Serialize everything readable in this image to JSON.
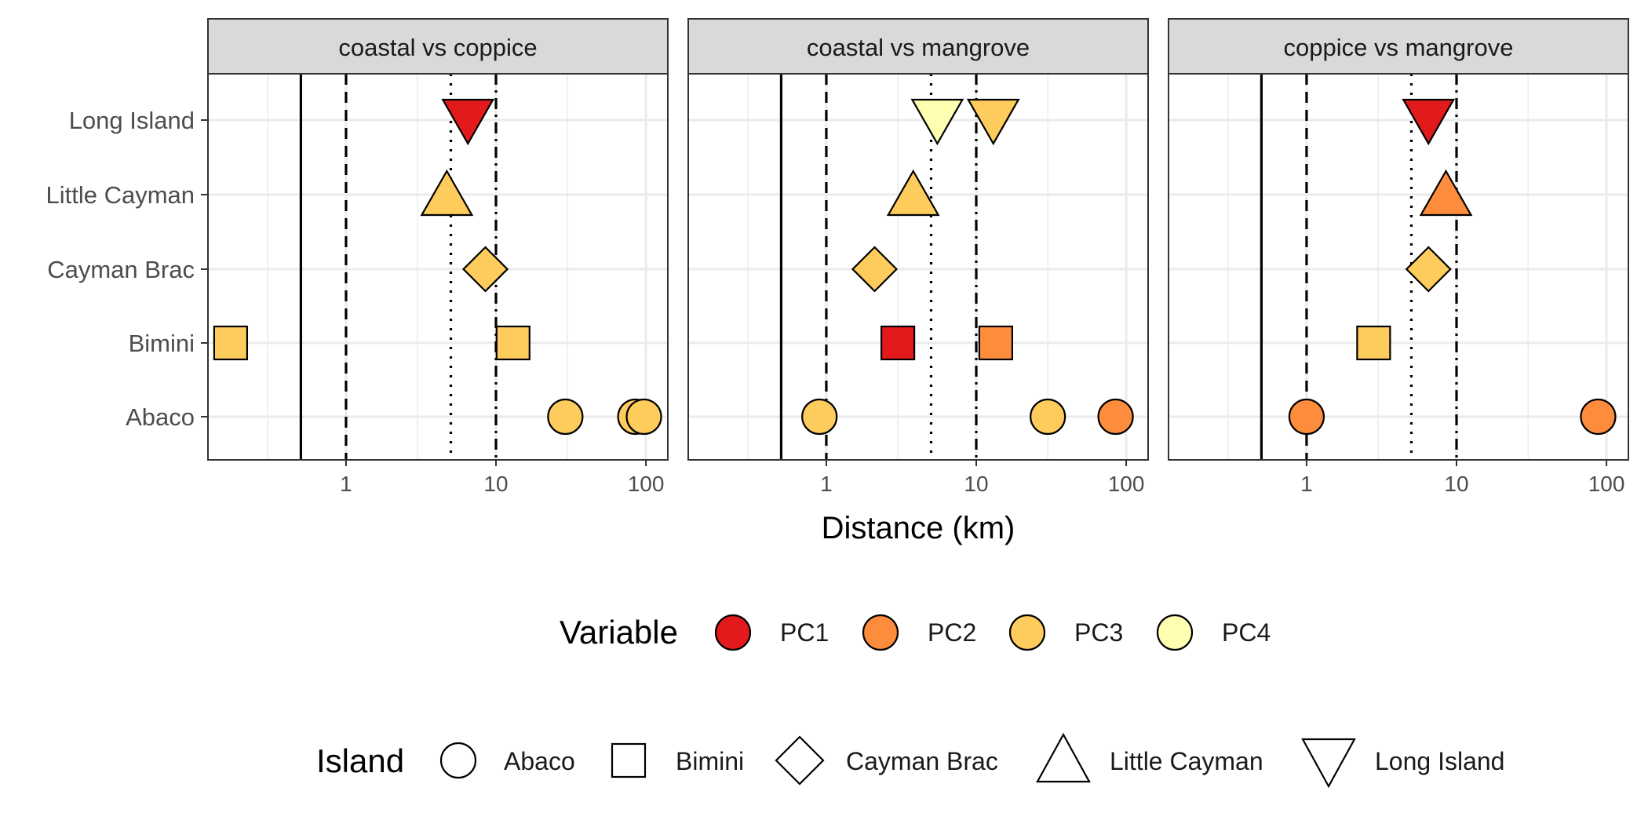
{
  "chart_data": {
    "type": "scatter",
    "xlabel": "Distance (km)",
    "x_scale": "log10",
    "xlim": [
      0.12,
      140
    ],
    "x_ticks": [
      1,
      10,
      100
    ],
    "x_tick_labels": [
      "1",
      "10",
      "100"
    ],
    "grid": true,
    "y_categories": [
      "Long Island",
      "Little Cayman",
      "Cayman Brac",
      "Bimini",
      "Abaco"
    ],
    "reference_lines": [
      {
        "x": 0.5,
        "style": "solid"
      },
      {
        "x": 1,
        "style": "dashed"
      },
      {
        "x": 5,
        "style": "dotted"
      },
      {
        "x": 10,
        "style": "dotdash"
      }
    ],
    "colors": {
      "PC1": "#e31a1c",
      "PC2": "#fd8d3c",
      "PC3": "#fecc5c",
      "PC4": "#ffffb2"
    },
    "shapes": {
      "Abaco": "circle",
      "Bimini": "square",
      "Cayman Brac": "diamond",
      "Little Cayman": "triangle-up",
      "Long Island": "triangle-down"
    },
    "facets": [
      {
        "title": "coastal vs coppice",
        "points": [
          {
            "island": "Long Island",
            "variable": "PC1",
            "x": 6.5
          },
          {
            "island": "Little Cayman",
            "variable": "PC3",
            "x": 4.7
          },
          {
            "island": "Cayman Brac",
            "variable": "PC3",
            "x": 8.5
          },
          {
            "island": "Bimini",
            "variable": "PC3",
            "x": 0.17
          },
          {
            "island": "Bimini",
            "variable": "PC3",
            "x": 13
          },
          {
            "island": "Abaco",
            "variable": "PC3",
            "x": 29
          },
          {
            "island": "Abaco",
            "variable": "PC3",
            "x": 85
          },
          {
            "island": "Abaco",
            "variable": "PC3",
            "x": 97
          }
        ]
      },
      {
        "title": "coastal vs mangrove",
        "points": [
          {
            "island": "Long Island",
            "variable": "PC4",
            "x": 5.5
          },
          {
            "island": "Long Island",
            "variable": "PC3",
            "x": 13
          },
          {
            "island": "Little Cayman",
            "variable": "PC3",
            "x": 3.8
          },
          {
            "island": "Cayman Brac",
            "variable": "PC3",
            "x": 2.1
          },
          {
            "island": "Bimini",
            "variable": "PC1",
            "x": 3
          },
          {
            "island": "Bimini",
            "variable": "PC2",
            "x": 13.5
          },
          {
            "island": "Abaco",
            "variable": "PC3",
            "x": 0.9
          },
          {
            "island": "Abaco",
            "variable": "PC3",
            "x": 30
          },
          {
            "island": "Abaco",
            "variable": "PC2",
            "x": 85
          }
        ]
      },
      {
        "title": "coppice vs mangrove",
        "points": [
          {
            "island": "Long Island",
            "variable": "PC1",
            "x": 6.5
          },
          {
            "island": "Little Cayman",
            "variable": "PC2",
            "x": 8.5
          },
          {
            "island": "Cayman Brac",
            "variable": "PC3",
            "x": 6.5
          },
          {
            "island": "Bimini",
            "variable": "PC3",
            "x": 2.8
          },
          {
            "island": "Abaco",
            "variable": "PC2",
            "x": 1
          },
          {
            "island": "Abaco",
            "variable": "PC2",
            "x": 88
          }
        ]
      }
    ],
    "legends": {
      "placement": "bottom",
      "variable": {
        "title": "Variable",
        "items": [
          "PC1",
          "PC2",
          "PC3",
          "PC4"
        ]
      },
      "island": {
        "title": "Island",
        "items": [
          "Abaco",
          "Bimini",
          "Cayman Brac",
          "Little Cayman",
          "Long Island"
        ]
      }
    }
  }
}
